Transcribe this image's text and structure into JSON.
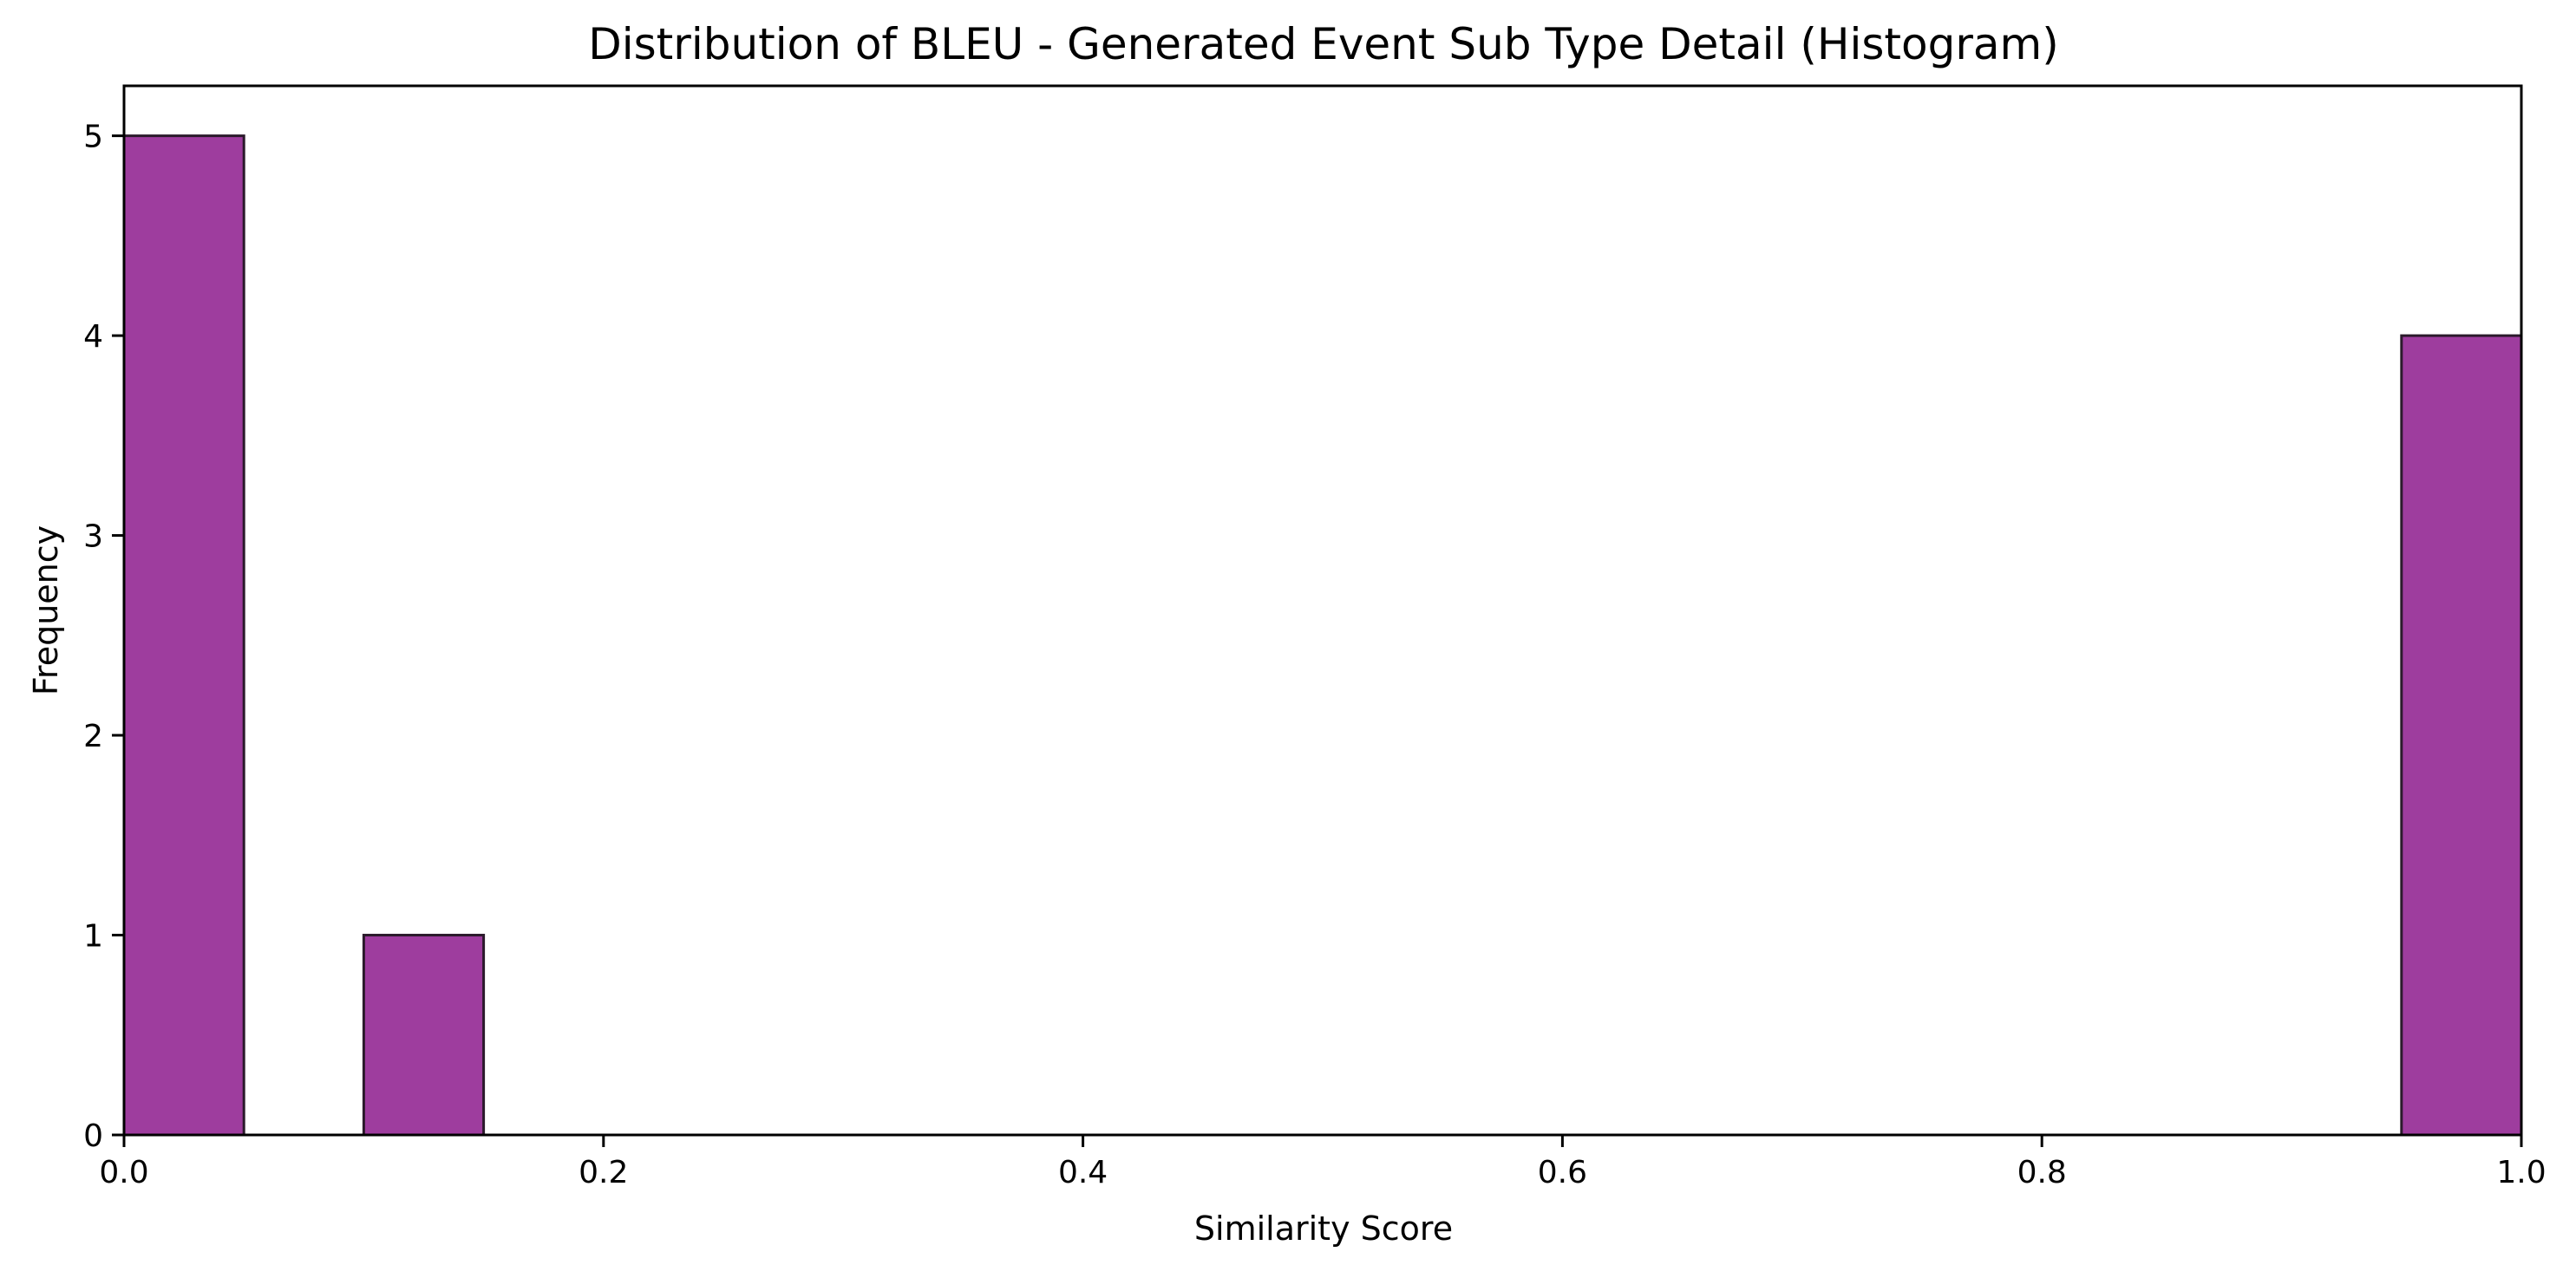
{
  "chart_data": {
    "type": "bar",
    "title": "Distribution of BLEU - Generated Event Sub Type Detail (Histogram)",
    "xlabel": "Similarity Score",
    "ylabel": "Frequency",
    "xlim": [
      0.0,
      1.0
    ],
    "ylim": [
      0,
      5.25
    ],
    "x_ticks": [
      "0.0",
      "0.2",
      "0.4",
      "0.6",
      "0.8",
      "1.0"
    ],
    "y_ticks": [
      "0",
      "1",
      "2",
      "3",
      "4",
      "5"
    ],
    "bins": [
      {
        "x0": 0.0,
        "x1": 0.05,
        "count": 5
      },
      {
        "x0": 0.1,
        "x1": 0.15,
        "count": 1
      },
      {
        "x0": 0.95,
        "x1": 1.0,
        "count": 4
      }
    ],
    "bar_color": "#9e3d9e",
    "bar_edge_color": "#2b1a2b",
    "grid": false,
    "legend": "none"
  }
}
